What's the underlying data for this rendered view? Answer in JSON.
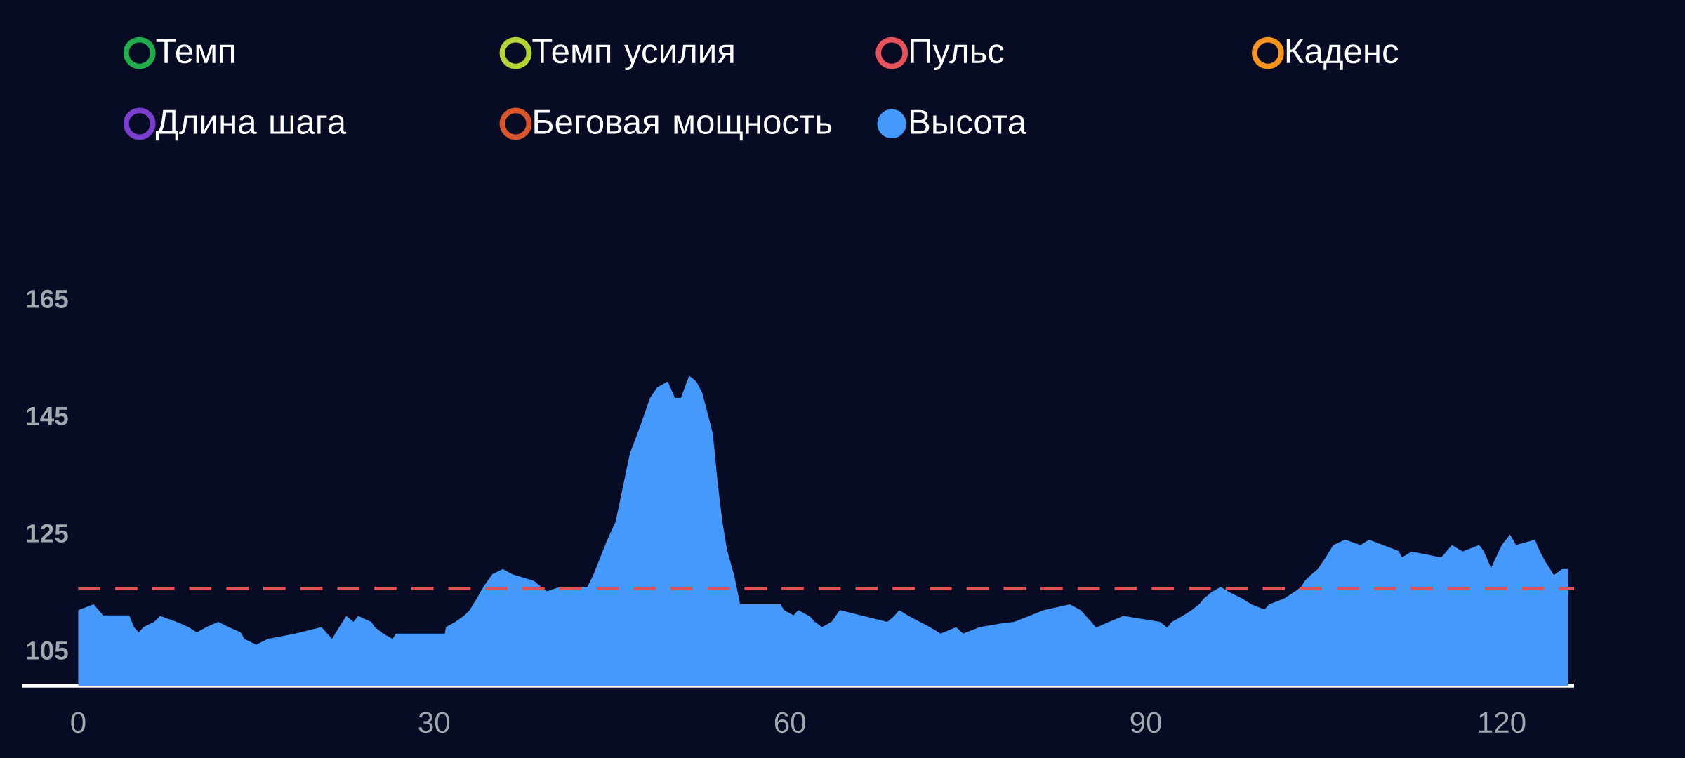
{
  "chart_data": {
    "type": "area",
    "legend": "top",
    "xlim": [
      -4.7,
      126.1
    ],
    "ylim": [
      99,
      216
    ],
    "xticks": [
      0,
      30,
      60,
      90,
      120
    ],
    "yticks": [
      105,
      125,
      145,
      165
    ],
    "ref_lines": [
      {
        "axis": "y",
        "value": 115.6,
        "color": "#e0525a",
        "line_style": "dashed"
      }
    ],
    "series": [
      {
        "name": "Темп",
        "color": "#1fae4b"
      },
      {
        "name": "Темп усилия",
        "color": "#b5d334"
      },
      {
        "name": "Пульс",
        "color": "#e8505a"
      },
      {
        "name": "Каденс",
        "color": "#f7941d"
      },
      {
        "name": "Длина шага",
        "color": "#7b3fd0"
      },
      {
        "name": "Беговая мощность",
        "color": "#d9572a"
      },
      {
        "name": "Высота",
        "color": "#4499fb",
        "x": [
          0,
          1.3,
          2.1,
          4.3,
          4.7,
          5.1,
          5.5,
          6.4,
          6.9,
          8.3,
          9.3,
          10.0,
          10.8,
          11.8,
          12.7,
          13.7,
          14.0,
          15.0,
          16.0,
          18.3,
          20.5,
          21.0,
          21.4,
          22.0,
          22.6,
          23.2,
          23.6,
          24.7,
          25.0,
          25.7,
          26.5,
          26.8,
          30.9,
          31.0,
          31.8,
          32.5,
          33.0,
          33.6,
          34.2,
          34.9,
          35.8,
          36.6,
          38.4,
          39.5,
          40.5,
          42.9,
          43.4,
          44.6,
          45.3,
          45.9,
          46.5,
          47.3,
          48.2,
          48.8,
          49.7,
          50.3,
          50.8,
          51.5,
          52.1,
          52.6,
          53.0,
          53.5,
          53.9,
          54.3,
          54.7,
          55.3,
          55.8,
          59.2,
          59.5,
          60.3,
          60.7,
          61.7,
          62.1,
          62.7,
          63.5,
          64.2,
          66.2,
          68.2,
          68.8,
          69.2,
          70.0,
          71.8,
          72.7,
          74.0,
          74.6,
          76.0,
          77.7,
          78.9,
          81.4,
          83.6,
          84.5,
          85.4,
          85.8,
          86.9,
          88.1,
          91.2,
          91.8,
          92.2,
          93.1,
          93.8,
          94.5,
          94.9,
          95.5,
          96.3,
          97.1,
          98.1,
          98.9,
          100.0,
          100.4,
          101.7,
          102.7,
          103.1,
          103.4,
          103.9,
          104.5,
          105.1,
          105.8,
          106.8,
          108.1,
          108.8,
          110.0,
          111.3,
          111.6,
          112.4,
          114.9,
          115.8,
          116.7,
          118.1,
          118.5,
          119.1,
          120.0,
          120.7,
          121.2,
          122.8,
          123.2,
          123.7,
          124.4,
          125.1,
          125.6
        ],
        "values": [
          111.9,
          112.9,
          111.0,
          111.0,
          109.0,
          108.1,
          109.0,
          109.9,
          110.9,
          109.9,
          109.0,
          108.1,
          109.0,
          109.9,
          109.0,
          108.1,
          107.0,
          106.0,
          107.0,
          107.9,
          109.0,
          107.9,
          107.0,
          109.0,
          110.9,
          109.9,
          110.9,
          109.9,
          109.0,
          107.9,
          107.0,
          107.9,
          107.9,
          109.0,
          109.9,
          110.9,
          111.9,
          113.9,
          116.0,
          118.0,
          118.9,
          118.0,
          116.9,
          115.1,
          115.8,
          115.8,
          117.8,
          123.9,
          127.0,
          132.8,
          138.6,
          142.9,
          148.1,
          149.9,
          150.9,
          148.1,
          148.1,
          151.9,
          150.9,
          149.0,
          145.9,
          142.0,
          133.7,
          127.0,
          122.1,
          117.8,
          112.9,
          112.9,
          111.9,
          111.0,
          111.9,
          110.8,
          109.9,
          109.0,
          109.9,
          111.9,
          110.9,
          109.9,
          110.9,
          111.9,
          110.9,
          109.0,
          107.9,
          109.0,
          107.9,
          109.0,
          109.6,
          109.9,
          111.9,
          112.9,
          111.9,
          109.9,
          108.9,
          109.9,
          110.9,
          109.9,
          108.9,
          109.9,
          110.9,
          111.8,
          112.9,
          113.9,
          114.9,
          115.9,
          114.9,
          113.9,
          112.9,
          112.0,
          112.9,
          113.9,
          115.3,
          115.9,
          116.9,
          117.9,
          118.9,
          120.7,
          123.0,
          123.9,
          123.0,
          123.9,
          123.0,
          122.0,
          120.9,
          121.9,
          120.9,
          123.0,
          121.9,
          123.0,
          121.9,
          119.1,
          123.0,
          124.8,
          123.0,
          123.9,
          122.0,
          120.1,
          117.9,
          118.9,
          118.9
        ]
      }
    ]
  }
}
